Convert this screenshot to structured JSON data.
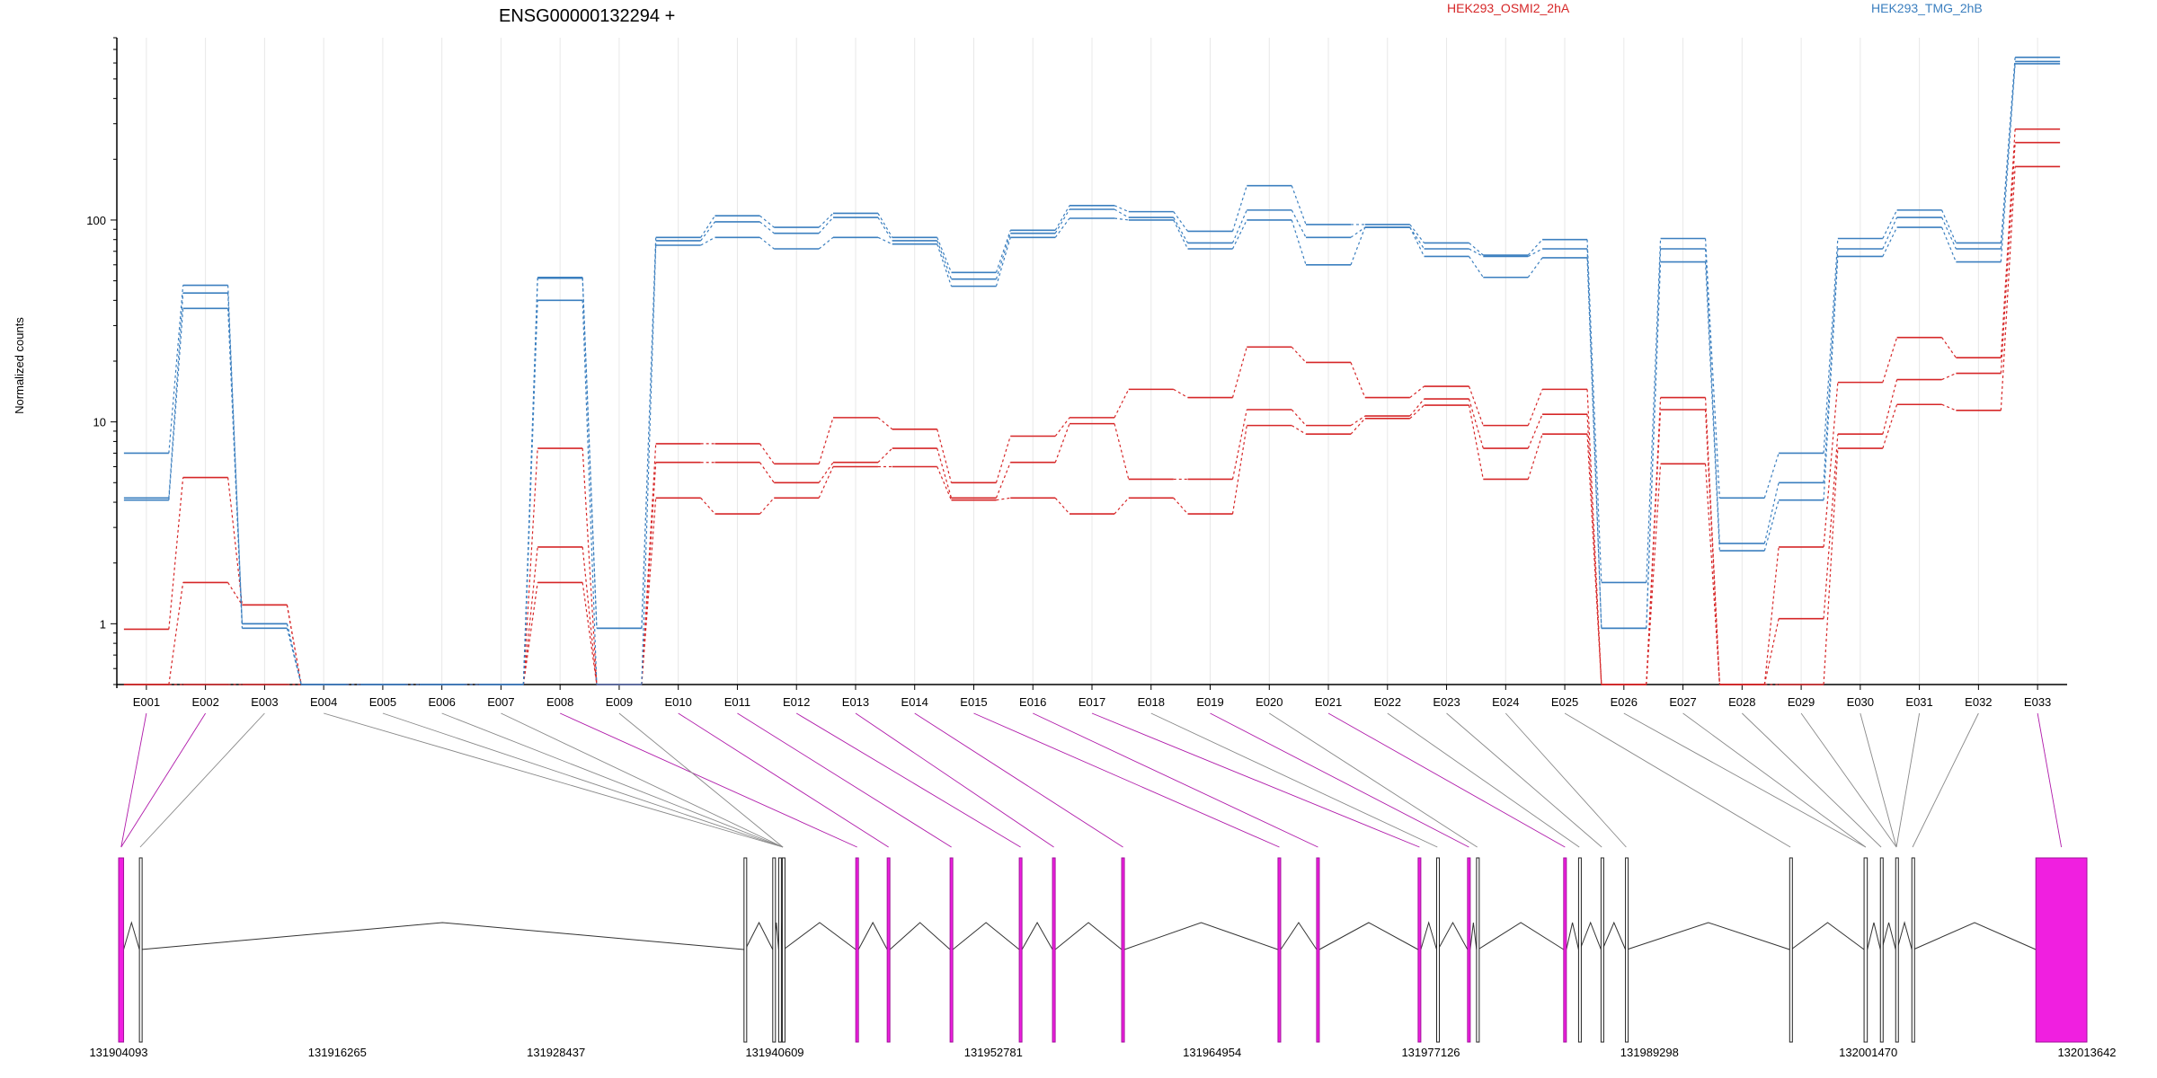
{
  "chart_data": {
    "type": "line",
    "title": "ENSG00000132294 +",
    "ylabel": "Normalized counts",
    "xlabel": "",
    "y_scale": "log",
    "ylim": [
      0.5,
      800
    ],
    "y_ticks": [
      {
        "value": 1,
        "label": "1"
      },
      {
        "value": 10,
        "label": "10"
      },
      {
        "value": 100,
        "label": "100"
      }
    ],
    "legend_placement": "top",
    "legend": [
      {
        "name": "HEK293_OSMI2_2hA",
        "color": "#d62728"
      },
      {
        "name": "HEK293_TMG_2hB",
        "color": "#3b7fbf"
      }
    ],
    "categories": [
      "E001",
      "E002",
      "E003",
      "E004",
      "E005",
      "E006",
      "E007",
      "E008",
      "E009",
      "E010",
      "E011",
      "E012",
      "E013",
      "E014",
      "E015",
      "E016",
      "E017",
      "E018",
      "E019",
      "E020",
      "E021",
      "E022",
      "E023",
      "E024",
      "E025",
      "E026",
      "E027",
      "E028",
      "E029",
      "E030",
      "E031",
      "E032",
      "E033"
    ],
    "series": [
      {
        "name": "HEK293_OSMI2_2hA",
        "color": "#d62728",
        "values": [
          0.94,
          5.3,
          1.24,
          0.5,
          0.5,
          0.5,
          0.5,
          7.4,
          0.5,
          7.8,
          7.8,
          6.2,
          10.5,
          9.2,
          5.0,
          8.5,
          10.5,
          14.5,
          13.2,
          23.5,
          19.7,
          13.2,
          15.0,
          9.6,
          14.5,
          0.5,
          13.2,
          0.5,
          2.4,
          15.7,
          26.2,
          20.8,
          282
        ]
      },
      {
        "name": "HEK293_OSMI2_2hA",
        "color": "#d62728",
        "values": [
          0.5,
          1.6,
          1.24,
          0.5,
          0.5,
          0.5,
          0.5,
          2.4,
          0.5,
          6.3,
          6.3,
          5.0,
          6.3,
          7.4,
          4.2,
          6.3,
          9.8,
          5.2,
          5.2,
          11.5,
          9.6,
          10.7,
          13.0,
          7.4,
          10.9,
          0.5,
          11.5,
          0.5,
          1.06,
          8.7,
          16.2,
          17.4,
          242
        ]
      },
      {
        "name": "HEK293_OSMI2_2hA",
        "color": "#d62728",
        "values": [
          0.5,
          0.5,
          0.5,
          0.5,
          0.5,
          0.5,
          0.5,
          1.6,
          0.5,
          4.2,
          3.5,
          4.2,
          6.0,
          6.0,
          4.1,
          4.2,
          3.5,
          4.2,
          3.5,
          9.6,
          8.7,
          10.4,
          12.1,
          5.2,
          8.7,
          0.5,
          6.2,
          0.5,
          0.5,
          7.4,
          12.2,
          11.4,
          184
        ]
      },
      {
        "name": "HEK293_TMG_2hB",
        "color": "#3b7fbf",
        "values": [
          7.0,
          47.5,
          1.0,
          0.5,
          0.5,
          0.5,
          0.5,
          52.0,
          0.95,
          82,
          105,
          92,
          108,
          82,
          55,
          89,
          118,
          110,
          88,
          148,
          95,
          95,
          77,
          67,
          80,
          1.6,
          81,
          4.2,
          7.0,
          81,
          112,
          77,
          640
        ]
      },
      {
        "name": "HEK293_TMG_2hB",
        "color": "#3b7fbf",
        "values": [
          4.2,
          43.5,
          1.0,
          0.5,
          0.5,
          0.5,
          0.5,
          51.5,
          0.95,
          79,
          98,
          86,
          103,
          79,
          51,
          86,
          113,
          103,
          77,
          112,
          82,
          92,
          72,
          66,
          72,
          0.95,
          72,
          2.5,
          5.0,
          72,
          103,
          72,
          610
        ]
      },
      {
        "name": "HEK293_TMG_2hB",
        "color": "#3b7fbf",
        "values": [
          4.1,
          36.5,
          0.95,
          0.5,
          0.5,
          0.5,
          0.5,
          40,
          0.5,
          75,
          82,
          72,
          82,
          76,
          47,
          82,
          102,
          100,
          72,
          100,
          60,
          92,
          66,
          52,
          65,
          0.95,
          62,
          2.3,
          4.1,
          66,
          92,
          62,
          595
        ]
      }
    ],
    "gene_model": {
      "coordinate_ticks": [
        "131904093",
        "131916265",
        "131928437",
        "131940609",
        "131952781",
        "131964954",
        "131977126",
        "131989298",
        "132001470",
        "132013642"
      ],
      "exons": [
        {
          "start": 131904093,
          "end": 131904370,
          "highlighted": true
        },
        {
          "start": 131905250,
          "end": 131905330,
          "highlighted": false
        },
        {
          "start": 131938900,
          "end": 131938970,
          "highlighted": false
        },
        {
          "start": 131940500,
          "end": 131940570,
          "highlighted": false
        },
        {
          "start": 131940830,
          "end": 131940900,
          "highlighted": false
        },
        {
          "start": 131941030,
          "end": 131941100,
          "highlighted": false
        },
        {
          "start": 131945120,
          "end": 131945270,
          "highlighted": true
        },
        {
          "start": 131946870,
          "end": 131947020,
          "highlighted": true
        },
        {
          "start": 131950370,
          "end": 131950520,
          "highlighted": true
        },
        {
          "start": 131954220,
          "end": 131954370,
          "highlighted": true
        },
        {
          "start": 131956070,
          "end": 131956220,
          "highlighted": true
        },
        {
          "start": 131959920,
          "end": 131960070,
          "highlighted": true
        },
        {
          "start": 131968620,
          "end": 131968770,
          "highlighted": true
        },
        {
          "start": 131970770,
          "end": 131970920,
          "highlighted": true
        },
        {
          "start": 131976420,
          "end": 131976570,
          "highlighted": true
        },
        {
          "start": 131977450,
          "end": 131977530,
          "highlighted": false
        },
        {
          "start": 131979170,
          "end": 131979320,
          "highlighted": true
        },
        {
          "start": 131979670,
          "end": 131979750,
          "highlighted": false
        },
        {
          "start": 131984520,
          "end": 131984670,
          "highlighted": true
        },
        {
          "start": 131985350,
          "end": 131985430,
          "highlighted": false
        },
        {
          "start": 131986600,
          "end": 131986680,
          "highlighted": false
        },
        {
          "start": 131987960,
          "end": 131988040,
          "highlighted": false
        },
        {
          "start": 131997100,
          "end": 131997180,
          "highlighted": false
        },
        {
          "start": 132001240,
          "end": 132001420,
          "highlighted": false
        },
        {
          "start": 132002150,
          "end": 132002230,
          "highlighted": false
        },
        {
          "start": 132003000,
          "end": 132003080,
          "highlighted": false
        },
        {
          "start": 132003900,
          "end": 132003980,
          "highlighted": false
        },
        {
          "start": 132010800,
          "end": 132013642,
          "highlighted": true
        }
      ],
      "bin_exon_map": [
        0,
        0,
        1,
        5,
        5,
        5,
        5,
        6,
        5,
        7,
        8,
        9,
        10,
        11,
        12,
        13,
        14,
        15,
        16,
        17,
        18,
        19,
        20,
        21,
        22,
        23,
        23,
        24,
        25,
        25,
        25,
        26,
        27
      ],
      "grid": false
    }
  }
}
